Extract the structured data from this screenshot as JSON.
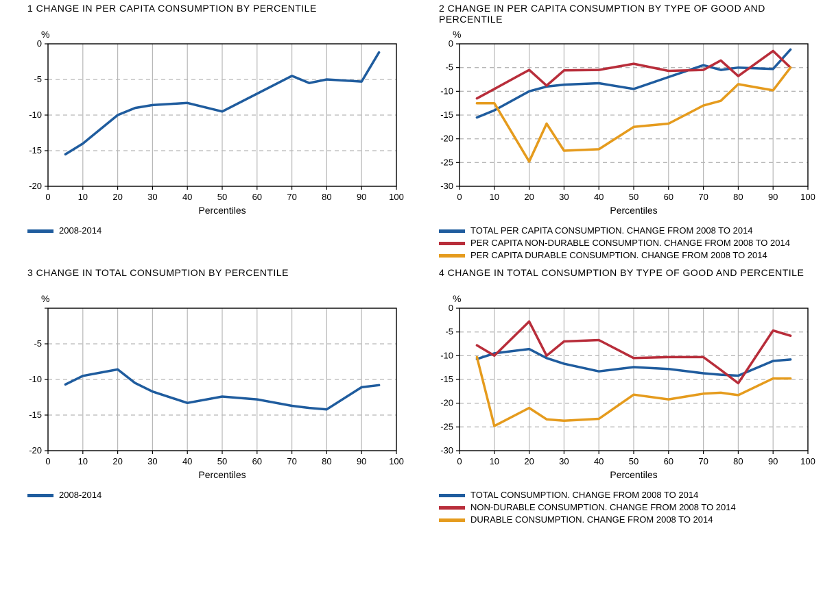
{
  "layout": {
    "columns": 2,
    "rows": 2,
    "background_color": "#ffffff",
    "panel_title_fontsize": 14,
    "tick_fontsize": 13,
    "axis_label_fontsize": 14
  },
  "common": {
    "x_values": [
      5,
      10,
      20,
      25,
      30,
      40,
      50,
      60,
      70,
      75,
      80,
      90,
      95
    ],
    "xlabel": "Percentiles",
    "y_unit": "%",
    "xlim": [
      0,
      100
    ],
    "xtick_step": 10,
    "grid_color": "#b7b7b7",
    "grid_dash": "6,5",
    "axis_color": "#000000",
    "tick_color": "#000000",
    "line_width": 3.5
  },
  "colors": {
    "blue": "#1f5c9e",
    "red": "#b82d3a",
    "orange": "#e59b1d"
  },
  "panels": [
    {
      "id": 1,
      "title": "1  CHANGE IN PER CAPITA CONSUMPTION BY PERCENTILE",
      "ylim": [
        -20,
        0
      ],
      "ytick_step": 5,
      "series": [
        {
          "label": "2008-2014",
          "color": "#1f5c9e",
          "y": [
            -15.5,
            -14.0,
            -10.0,
            -9.0,
            -8.6,
            -8.3,
            -9.5,
            -7.0,
            -4.5,
            -5.5,
            -5.0,
            -5.3,
            -1.2
          ]
        }
      ],
      "legend": [
        {
          "label": "2008-2014",
          "color": "#1f5c9e"
        }
      ]
    },
    {
      "id": 2,
      "title": "2  CHANGE IN PER CAPITA CONSUMPTION BY TYPE OF GOOD AND PERCENTILE",
      "ylim": [
        -30,
        0
      ],
      "ytick_step": 5,
      "series": [
        {
          "label": "TOTAL PER CAPITA CONSUMPTION. CHANGE FROM 2008 TO 2014",
          "color": "#1f5c9e",
          "y": [
            -15.5,
            -14.0,
            -10.0,
            -9.0,
            -8.6,
            -8.3,
            -9.5,
            -7.0,
            -4.5,
            -5.5,
            -5.0,
            -5.3,
            -1.2
          ]
        },
        {
          "label": "PER CAPITA NON-DURABLE CONSUMPTION. CHANGE FROM 2008 TO 2014",
          "color": "#b82d3a",
          "y": [
            -11.5,
            -9.5,
            -5.5,
            -8.8,
            -5.6,
            -5.5,
            -4.2,
            -5.7,
            -5.5,
            -3.5,
            -6.8,
            -1.5,
            -5.0
          ]
        },
        {
          "label": "PER CAPITA DURABLE CONSUMPTION. CHANGE FROM 2008 TO 2014",
          "color": "#e59b1d",
          "y": [
            -12.5,
            -12.5,
            -24.8,
            -16.8,
            -22.5,
            -22.2,
            -17.5,
            -16.8,
            -13.0,
            -12.0,
            -8.5,
            -9.8,
            -5.0
          ]
        }
      ],
      "legend": [
        {
          "label": "TOTAL PER CAPITA CONSUMPTION. CHANGE FROM 2008 TO 2014",
          "color": "#1f5c9e"
        },
        {
          "label": "PER CAPITA NON-DURABLE CONSUMPTION. CHANGE FROM 2008 TO 2014",
          "color": "#b82d3a"
        },
        {
          "label": "PER CAPITA DURABLE CONSUMPTION. CHANGE FROM 2008 TO 2014",
          "color": "#e59b1d"
        }
      ]
    },
    {
      "id": 3,
      "title": "3  CHANGE IN TOTAL CONSUMPTION BY PERCENTILE",
      "ylim": [
        -20,
        0
      ],
      "ytick_step": 5,
      "suppress_top_label": true,
      "series": [
        {
          "label": "2008-2014",
          "color": "#1f5c9e",
          "y": [
            -10.7,
            -9.5,
            -8.6,
            -10.5,
            -11.7,
            -13.3,
            -12.4,
            -12.8,
            -13.7,
            -14.0,
            -14.2,
            -11.1,
            -10.8
          ]
        }
      ],
      "legend": [
        {
          "label": "2008-2014",
          "color": "#1f5c9e"
        }
      ]
    },
    {
      "id": 4,
      "title": "4  CHANGE IN TOTAL CONSUMPTION BY TYPE OF GOOD AND PERCENTILE",
      "ylim": [
        -30,
        0
      ],
      "ytick_step": 5,
      "series": [
        {
          "label": "TOTAL CONSUMPTION. CHANGE FROM 2008 TO 2014",
          "color": "#1f5c9e",
          "y": [
            -10.7,
            -9.5,
            -8.6,
            -10.5,
            -11.7,
            -13.3,
            -12.4,
            -12.8,
            -13.7,
            -14.0,
            -14.2,
            -11.1,
            -10.8
          ]
        },
        {
          "label": "NON-DURABLE CONSUMPTION. CHANGE FROM 2008 TO 2014",
          "color": "#b82d3a",
          "y": [
            -7.8,
            -10.0,
            -2.8,
            -10.0,
            -7.0,
            -6.7,
            -10.5,
            -10.3,
            -10.3,
            -13.0,
            -15.8,
            -4.7,
            -5.8
          ]
        },
        {
          "label": "DURABLE CONSUMPTION. CHANGE FROM 2008 TO 2014",
          "color": "#e59b1d",
          "y": [
            -10.3,
            -24.8,
            -21.0,
            -23.4,
            -23.7,
            -23.3,
            -18.2,
            -19.2,
            -18.0,
            -17.8,
            -18.3,
            -14.8,
            -14.8
          ]
        }
      ],
      "legend": [
        {
          "label": "TOTAL CONSUMPTION. CHANGE FROM 2008 TO 2014",
          "color": "#1f5c9e"
        },
        {
          "label": "NON-DURABLE CONSUMPTION. CHANGE FROM 2008 TO 2014",
          "color": "#b82d3a"
        },
        {
          "label": "DURABLE CONSUMPTION. CHANGE FROM 2008 TO 2014",
          "color": "#e59b1d"
        }
      ]
    }
  ]
}
